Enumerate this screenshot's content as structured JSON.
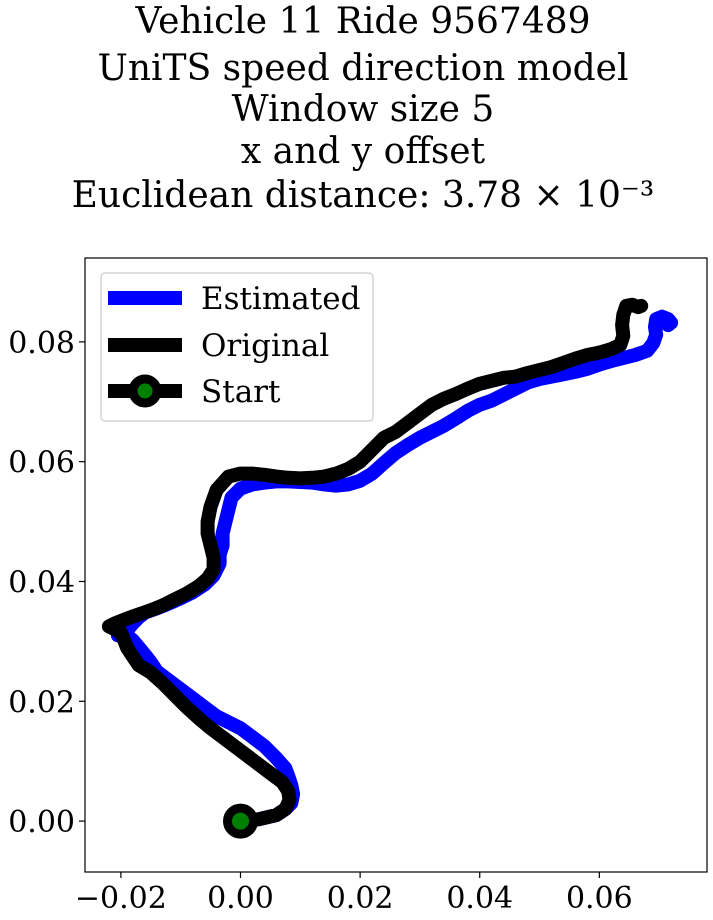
{
  "chart_data": {
    "type": "line",
    "title_lines": [
      "Vehicle 11 Ride 9567489",
      "UniTS speed direction model",
      "Window size 5",
      "x and y offset",
      "Euclidean distance: 3.78 × 10⁻³"
    ],
    "xlabel": "",
    "ylabel": "",
    "xlim": [
      -0.026,
      0.078
    ],
    "ylim": [
      -0.0085,
      0.094
    ],
    "xticks": [
      -0.02,
      0.0,
      0.02,
      0.04,
      0.06
    ],
    "xtick_labels": [
      "−0.02",
      "0.00",
      "0.02",
      "0.04",
      "0.06"
    ],
    "yticks": [
      0.0,
      0.02,
      0.04,
      0.06,
      0.08
    ],
    "ytick_labels": [
      "0.00",
      "0.02",
      "0.04",
      "0.06",
      "0.08"
    ],
    "grid": false,
    "legend_position": "upper-left",
    "legend": [
      "Estimated",
      "Original",
      "Start"
    ],
    "colors": {
      "estimated": "#0000ff",
      "original": "#000000",
      "start_fill": "#008000",
      "start_edge": "#000000"
    },
    "series": [
      {
        "name": "Estimated",
        "x": [
          0.0,
          0.003,
          0.006,
          0.0075,
          0.0085,
          0.0088,
          0.0085,
          0.008,
          0.0075,
          0.006,
          0.004,
          0.002,
          0.0,
          -0.002,
          -0.004,
          -0.006,
          -0.008,
          -0.01,
          -0.012,
          -0.014,
          -0.015,
          -0.016,
          -0.017,
          -0.018,
          -0.019,
          -0.02,
          -0.0205,
          -0.019,
          -0.018,
          -0.017,
          -0.016,
          -0.014,
          -0.012,
          -0.01,
          -0.008,
          -0.006,
          -0.0045,
          -0.0035,
          -0.0035,
          -0.003,
          -0.003,
          -0.0025,
          -0.002,
          -0.0015,
          0.0,
          0.002,
          0.004,
          0.006,
          0.008,
          0.01,
          0.012,
          0.014,
          0.016,
          0.018,
          0.02,
          0.022,
          0.024,
          0.026,
          0.028,
          0.03,
          0.032,
          0.034,
          0.036,
          0.038,
          0.04,
          0.042,
          0.044,
          0.046,
          0.048,
          0.05,
          0.052,
          0.054,
          0.056,
          0.058,
          0.06,
          0.062,
          0.064,
          0.066,
          0.068,
          0.069,
          0.0695,
          0.0693,
          0.0695,
          0.0705,
          0.0715,
          0.072,
          0.0715
        ],
        "y": [
          0.0,
          0.0003,
          0.001,
          0.002,
          0.003,
          0.0045,
          0.006,
          0.0075,
          0.0088,
          0.0105,
          0.0125,
          0.014,
          0.0155,
          0.0165,
          0.0175,
          0.019,
          0.0205,
          0.022,
          0.0235,
          0.025,
          0.0265,
          0.0278,
          0.029,
          0.0302,
          0.031,
          0.0315,
          0.031,
          0.0318,
          0.033,
          0.034,
          0.0348,
          0.0355,
          0.0363,
          0.0372,
          0.0382,
          0.0395,
          0.041,
          0.043,
          0.0445,
          0.046,
          0.048,
          0.05,
          0.052,
          0.054,
          0.0555,
          0.0562,
          0.0565,
          0.0567,
          0.0567,
          0.0566,
          0.0565,
          0.0562,
          0.056,
          0.0562,
          0.0568,
          0.058,
          0.0598,
          0.0615,
          0.0628,
          0.064,
          0.065,
          0.066,
          0.0672,
          0.0685,
          0.0695,
          0.0702,
          0.0712,
          0.0722,
          0.0732,
          0.0738,
          0.0742,
          0.0746,
          0.075,
          0.0755,
          0.0762,
          0.0768,
          0.0773,
          0.0778,
          0.0785,
          0.0798,
          0.0812,
          0.0825,
          0.0838,
          0.0842,
          0.0838,
          0.0832,
          0.0828
        ]
      },
      {
        "name": "Original",
        "x": [
          0.0,
          0.003,
          0.006,
          0.0075,
          0.0082,
          0.008,
          0.007,
          0.005,
          0.003,
          0.001,
          -0.001,
          -0.003,
          -0.005,
          -0.007,
          -0.009,
          -0.011,
          -0.013,
          -0.015,
          -0.017,
          -0.018,
          -0.019,
          -0.0195,
          -0.02,
          -0.021,
          -0.022,
          -0.021,
          -0.019,
          -0.017,
          -0.015,
          -0.013,
          -0.011,
          -0.009,
          -0.007,
          -0.0055,
          -0.0045,
          -0.0045,
          -0.005,
          -0.0055,
          -0.0055,
          -0.005,
          -0.004,
          -0.002,
          0.0,
          0.002,
          0.004,
          0.006,
          0.008,
          0.01,
          0.012,
          0.014,
          0.016,
          0.018,
          0.02,
          0.022,
          0.024,
          0.026,
          0.028,
          0.03,
          0.032,
          0.034,
          0.036,
          0.038,
          0.04,
          0.042,
          0.044,
          0.046,
          0.048,
          0.05,
          0.052,
          0.054,
          0.056,
          0.058,
          0.06,
          0.062,
          0.0635,
          0.064,
          0.0638,
          0.064,
          0.0645,
          0.0655,
          0.0665,
          0.067
        ],
        "y": [
          0.0,
          0.0003,
          0.001,
          0.002,
          0.0035,
          0.005,
          0.0065,
          0.008,
          0.0095,
          0.011,
          0.0125,
          0.014,
          0.0155,
          0.0172,
          0.019,
          0.021,
          0.023,
          0.0248,
          0.026,
          0.0275,
          0.029,
          0.0303,
          0.0315,
          0.032,
          0.0325,
          0.033,
          0.0338,
          0.0345,
          0.0352,
          0.036,
          0.037,
          0.038,
          0.0392,
          0.0405,
          0.042,
          0.044,
          0.046,
          0.048,
          0.05,
          0.0525,
          0.0553,
          0.0575,
          0.058,
          0.058,
          0.0578,
          0.0575,
          0.0573,
          0.0572,
          0.0573,
          0.0575,
          0.058,
          0.0588,
          0.06,
          0.062,
          0.064,
          0.065,
          0.0665,
          0.068,
          0.0695,
          0.0705,
          0.0713,
          0.0722,
          0.073,
          0.0735,
          0.074,
          0.0742,
          0.0748,
          0.0753,
          0.0758,
          0.0765,
          0.0772,
          0.0778,
          0.0782,
          0.0788,
          0.0795,
          0.081,
          0.0828,
          0.0845,
          0.086,
          0.0862,
          0.0858,
          0.086
        ]
      }
    ],
    "start_point": {
      "x": 0.0,
      "y": 0.0
    }
  }
}
